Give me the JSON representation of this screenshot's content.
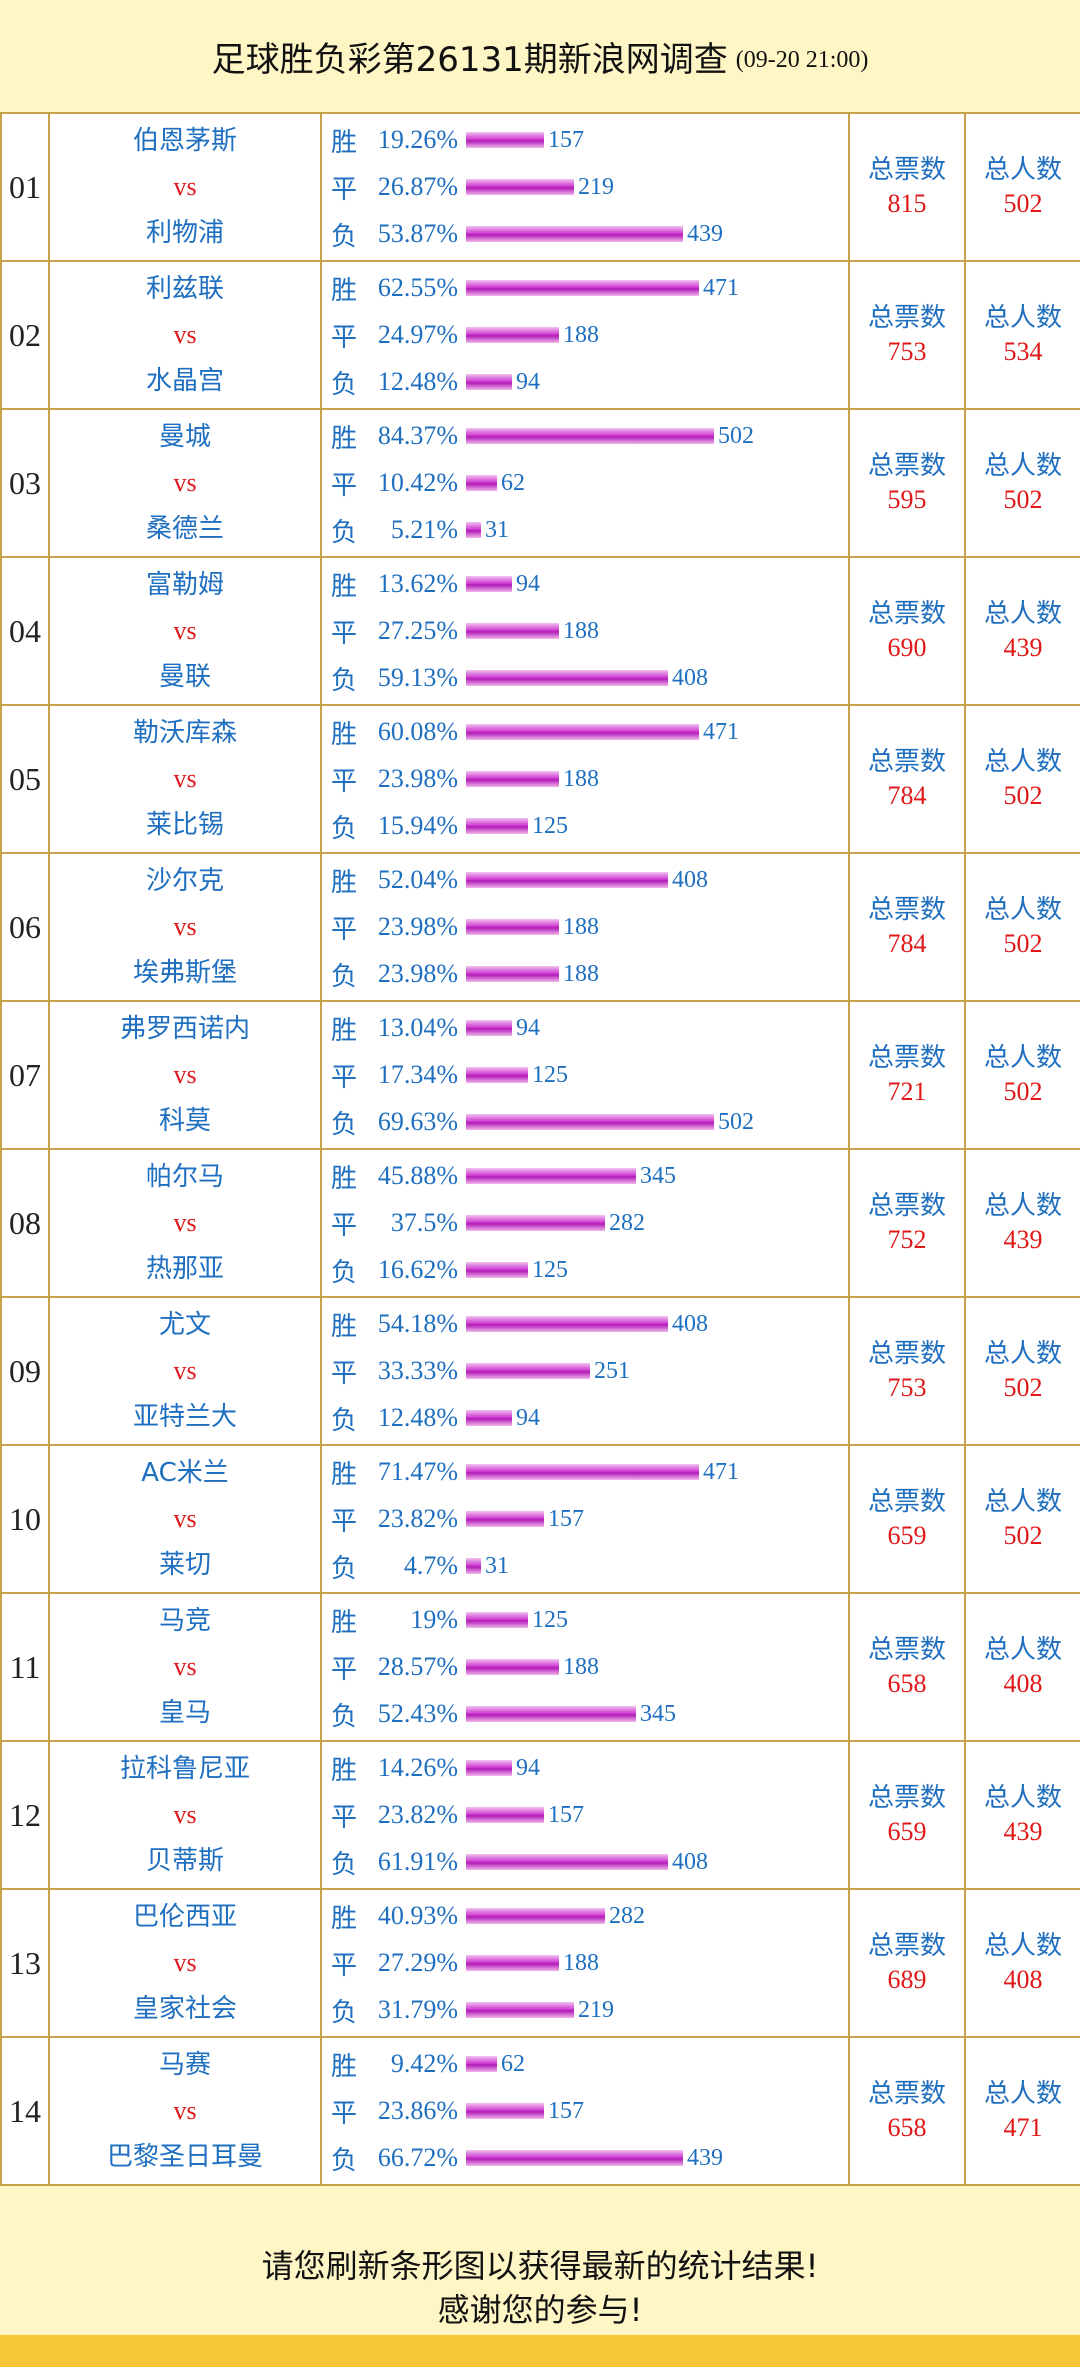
{
  "header": {
    "title": "足球胜负彩第26131期新浪网调查",
    "date": "(09-20 21:00)"
  },
  "labels": {
    "win": "胜",
    "draw": "平",
    "lose": "负",
    "vs": "vs",
    "total_votes": "总票数",
    "total_people": "总人数"
  },
  "footer": {
    "line1": "请您刷新条形图以获得最新的统计结果!",
    "line2": "感谢您的参与!"
  },
  "colors": {
    "background": "#fff6c6",
    "border": "#c8a24a",
    "text_blue": "#1f6fc0",
    "text_red": "#e01818",
    "bar": "#cf3fd2",
    "bottom_strip": "#f7c634"
  },
  "matches": [
    {
      "no": "01",
      "home": "伯恩茅斯",
      "away": "利物浦",
      "win": {
        "pct": "19.26%",
        "count": 157
      },
      "draw": {
        "pct": "26.87%",
        "count": 219
      },
      "lose": {
        "pct": "53.87%",
        "count": 439
      },
      "total_votes": "815",
      "total_people": "502"
    },
    {
      "no": "02",
      "home": "利兹联",
      "away": "水晶宫",
      "win": {
        "pct": "62.55%",
        "count": 471
      },
      "draw": {
        "pct": "24.97%",
        "count": 188
      },
      "lose": {
        "pct": "12.48%",
        "count": 94
      },
      "total_votes": "753",
      "total_people": "534"
    },
    {
      "no": "03",
      "home": "曼城",
      "away": "桑德兰",
      "win": {
        "pct": "84.37%",
        "count": 502
      },
      "draw": {
        "pct": "10.42%",
        "count": 62
      },
      "lose": {
        "pct": "5.21%",
        "count": 31
      },
      "total_votes": "595",
      "total_people": "502"
    },
    {
      "no": "04",
      "home": "富勒姆",
      "away": "曼联",
      "win": {
        "pct": "13.62%",
        "count": 94
      },
      "draw": {
        "pct": "27.25%",
        "count": 188
      },
      "lose": {
        "pct": "59.13%",
        "count": 408
      },
      "total_votes": "690",
      "total_people": "439"
    },
    {
      "no": "05",
      "home": "勒沃库森",
      "away": "莱比锡",
      "win": {
        "pct": "60.08%",
        "count": 471
      },
      "draw": {
        "pct": "23.98%",
        "count": 188
      },
      "lose": {
        "pct": "15.94%",
        "count": 125
      },
      "total_votes": "784",
      "total_people": "502"
    },
    {
      "no": "06",
      "home": "沙尔克",
      "away": "埃弗斯堡",
      "win": {
        "pct": "52.04%",
        "count": 408
      },
      "draw": {
        "pct": "23.98%",
        "count": 188
      },
      "lose": {
        "pct": "23.98%",
        "count": 188
      },
      "total_votes": "784",
      "total_people": "502"
    },
    {
      "no": "07",
      "home": "弗罗西诺内",
      "away": "科莫",
      "win": {
        "pct": "13.04%",
        "count": 94
      },
      "draw": {
        "pct": "17.34%",
        "count": 125
      },
      "lose": {
        "pct": "69.63%",
        "count": 502
      },
      "total_votes": "721",
      "total_people": "502"
    },
    {
      "no": "08",
      "home": "帕尔马",
      "away": "热那亚",
      "win": {
        "pct": "45.88%",
        "count": 345
      },
      "draw": {
        "pct": "37.5%",
        "count": 282
      },
      "lose": {
        "pct": "16.62%",
        "count": 125
      },
      "total_votes": "752",
      "total_people": "439"
    },
    {
      "no": "09",
      "home": "尤文",
      "away": "亚特兰大",
      "win": {
        "pct": "54.18%",
        "count": 408
      },
      "draw": {
        "pct": "33.33%",
        "count": 251
      },
      "lose": {
        "pct": "12.48%",
        "count": 94
      },
      "total_votes": "753",
      "total_people": "502"
    },
    {
      "no": "10",
      "home": "AC米兰",
      "away": "莱切",
      "win": {
        "pct": "71.47%",
        "count": 471
      },
      "draw": {
        "pct": "23.82%",
        "count": 157
      },
      "lose": {
        "pct": "4.7%",
        "count": 31
      },
      "total_votes": "659",
      "total_people": "502"
    },
    {
      "no": "11",
      "home": "马竞",
      "away": "皇马",
      "win": {
        "pct": "19%",
        "count": 125
      },
      "draw": {
        "pct": "28.57%",
        "count": 188
      },
      "lose": {
        "pct": "52.43%",
        "count": 345
      },
      "total_votes": "658",
      "total_people": "408"
    },
    {
      "no": "12",
      "home": "拉科鲁尼亚",
      "away": "贝蒂斯",
      "win": {
        "pct": "14.26%",
        "count": 94
      },
      "draw": {
        "pct": "23.82%",
        "count": 157
      },
      "lose": {
        "pct": "61.91%",
        "count": 408
      },
      "total_votes": "659",
      "total_people": "439"
    },
    {
      "no": "13",
      "home": "巴伦西亚",
      "away": "皇家社会",
      "win": {
        "pct": "40.93%",
        "count": 282
      },
      "draw": {
        "pct": "27.29%",
        "count": 188
      },
      "lose": {
        "pct": "31.79%",
        "count": 219
      },
      "total_votes": "689",
      "total_people": "408"
    },
    {
      "no": "14",
      "home": "马赛",
      "away": "巴黎圣日耳曼",
      "win": {
        "pct": "9.42%",
        "count": 62
      },
      "draw": {
        "pct": "23.86%",
        "count": 157
      },
      "lose": {
        "pct": "66.72%",
        "count": 439
      },
      "total_votes": "658",
      "total_people": "471"
    }
  ]
}
